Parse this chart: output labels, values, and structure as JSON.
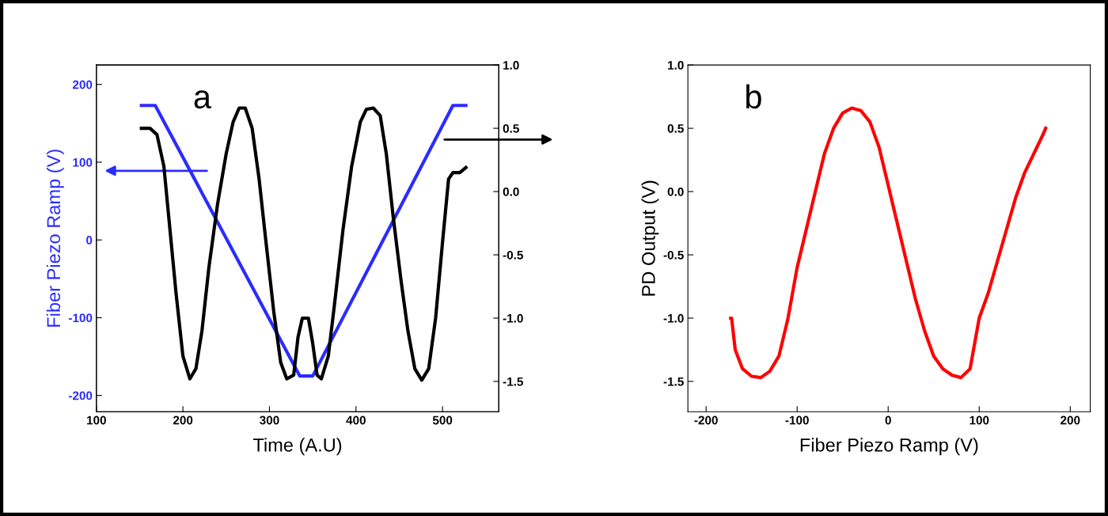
{
  "chart_data": [
    {
      "type": "line",
      "xlabel": "Time (A.U)",
      "ylabel": "Fiber Piezo Ramp (V)",
      "annotations": [
        "a"
      ],
      "xlim": [
        100,
        565
      ],
      "xticks": [
        100,
        200,
        300,
        400,
        500
      ],
      "ylim": [
        -221,
        225
      ],
      "yticks": [
        -200,
        -100,
        0,
        100,
        200
      ],
      "y2lim": [
        -1.74,
        1.0
      ],
      "y2ticks": [
        -1.5,
        {
          "value": -1,
          "label": "-1.0"
        },
        -0.5,
        {
          "value": 0,
          "label": "0.0"
        },
        0.5,
        {
          "value": 1,
          "label": "1.0"
        }
      ],
      "grid": false,
      "legend": false,
      "series": [
        {
          "color": "#2b2bff",
          "x": [
            152,
            168,
            335,
            350,
            512,
            527
          ],
          "values": [
            173,
            173,
            -175,
            -175,
            173,
            173
          ]
        },
        {
          "color": "#000000",
          "axis": "y2",
          "x": [
            152,
            162,
            170,
            178,
            185,
            192,
            200,
            208,
            215,
            222,
            230,
            240,
            250,
            258,
            265,
            272,
            280,
            288,
            296,
            305,
            313,
            320,
            328,
            333,
            338,
            345,
            350,
            355,
            360,
            368,
            375,
            385,
            395,
            405,
            412,
            420,
            428,
            435,
            443,
            452,
            460,
            468,
            476,
            484,
            492,
            500,
            507,
            512,
            520,
            527
          ],
          "values": [
            0.5,
            0.5,
            0.45,
            0.2,
            -0.3,
            -0.8,
            -1.3,
            -1.48,
            -1.4,
            -1.1,
            -0.6,
            -0.1,
            0.3,
            0.55,
            0.66,
            0.66,
            0.5,
            0.1,
            -0.4,
            -0.95,
            -1.35,
            -1.48,
            -1.45,
            -1.15,
            -1.0,
            -1.0,
            -1.2,
            -1.45,
            -1.48,
            -1.3,
            -0.9,
            -0.3,
            0.2,
            0.55,
            0.65,
            0.66,
            0.6,
            0.3,
            -0.2,
            -0.7,
            -1.1,
            -1.4,
            -1.49,
            -1.4,
            -1.0,
            -0.4,
            0.1,
            0.15,
            0.15,
            0.19
          ]
        }
      ]
    },
    {
      "type": "line",
      "xlabel": "Fiber Piezo Ramp (V)",
      "ylabel": "PD Output (V)",
      "annotations": [
        "b"
      ],
      "xlim": [
        -220,
        222
      ],
      "xticks": [
        -200,
        -100,
        0,
        100,
        200
      ],
      "ylim": [
        -1.74,
        1.0
      ],
      "yticks": [
        -1.5,
        {
          "value": -1,
          "label": "-1.0"
        },
        -0.5,
        {
          "value": 0,
          "label": "0.0"
        },
        0.5,
        {
          "value": 1,
          "label": "1.0"
        }
      ],
      "grid": false,
      "legend": false,
      "series": [
        {
          "color": "#ff0000",
          "x": [
            -173,
            -172,
            -168,
            -160,
            -150,
            -140,
            -130,
            -120,
            -110,
            -100,
            -90,
            -80,
            -70,
            -60,
            -50,
            -40,
            -30,
            -20,
            -10,
            0,
            10,
            20,
            30,
            40,
            50,
            60,
            70,
            80,
            90,
            100,
            110,
            120,
            130,
            140,
            150,
            160,
            170,
            173
          ],
          "values": [
            -1.0,
            -1.0,
            -1.25,
            -1.4,
            -1.46,
            -1.47,
            -1.42,
            -1.3,
            -1.0,
            -0.6,
            -0.3,
            0.0,
            0.3,
            0.5,
            0.62,
            0.66,
            0.64,
            0.55,
            0.35,
            0.05,
            -0.25,
            -0.55,
            -0.85,
            -1.1,
            -1.3,
            -1.4,
            -1.45,
            -1.47,
            -1.4,
            -1.0,
            -0.8,
            -0.55,
            -0.3,
            -0.05,
            0.15,
            0.3,
            0.45,
            0.5
          ]
        }
      ]
    }
  ]
}
